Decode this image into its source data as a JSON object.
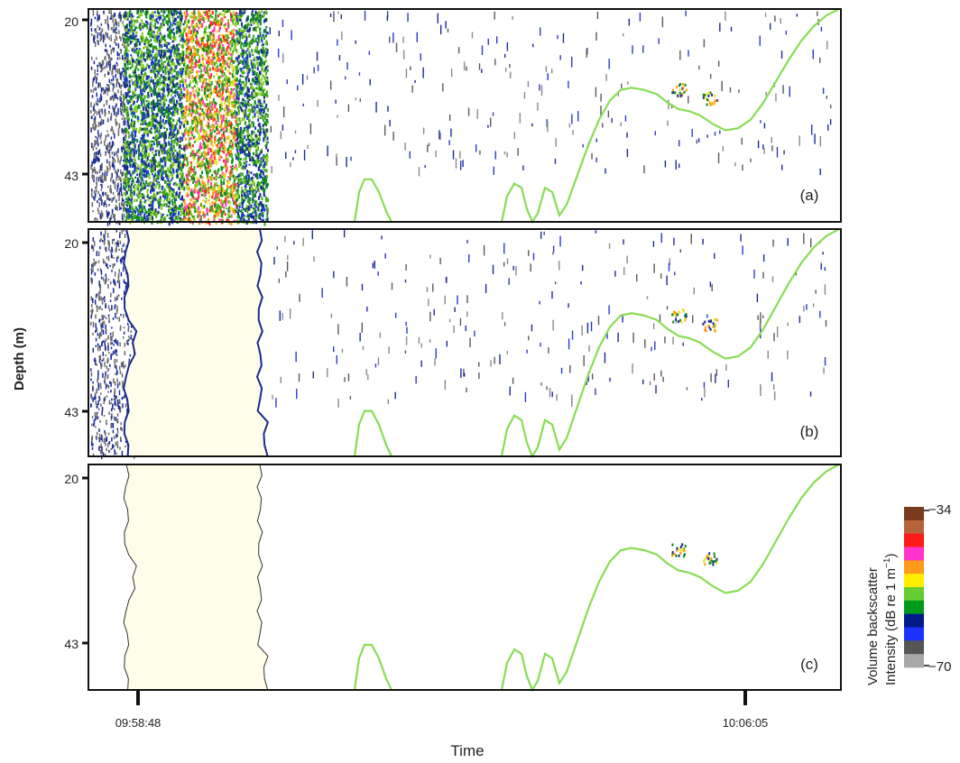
{
  "figure": {
    "ylabel": "Depth (m)",
    "xlabel": "Time",
    "colorbar": {
      "title_line1": "Volume backscatter",
      "title_line2": "Intensity (dB re 1 m",
      "title_sup": "−1",
      "title_close": ")",
      "max_label": "−34",
      "min_label": "−70",
      "colors": [
        "#7a3a1e",
        "#b8643a",
        "#ff1a1a",
        "#ff33cc",
        "#ff9a1a",
        "#ffee00",
        "#66cc33",
        "#009a1a",
        "#001a8a",
        "#1a33ff",
        "#555555",
        "#a8a8a8"
      ]
    }
  },
  "chart_data": [
    {
      "type": "heatmap",
      "panel": "(a)",
      "y_ticks": [
        "20",
        "43"
      ],
      "x_ticks": [],
      "noise_band": "full",
      "bottom_line_color": "#88dd55"
    },
    {
      "type": "heatmap",
      "panel": "(b)",
      "y_ticks": [
        "20",
        "43"
      ],
      "x_ticks": [],
      "noise_band": "removed",
      "bottom_line_color": "#88dd55"
    },
    {
      "type": "heatmap",
      "panel": "(c)",
      "y_ticks": [
        "20",
        "43"
      ],
      "x_ticks": [
        "09:58:48",
        "10:06:05"
      ],
      "noise_band": "removed",
      "bottom_line_color": "#88dd55"
    }
  ]
}
